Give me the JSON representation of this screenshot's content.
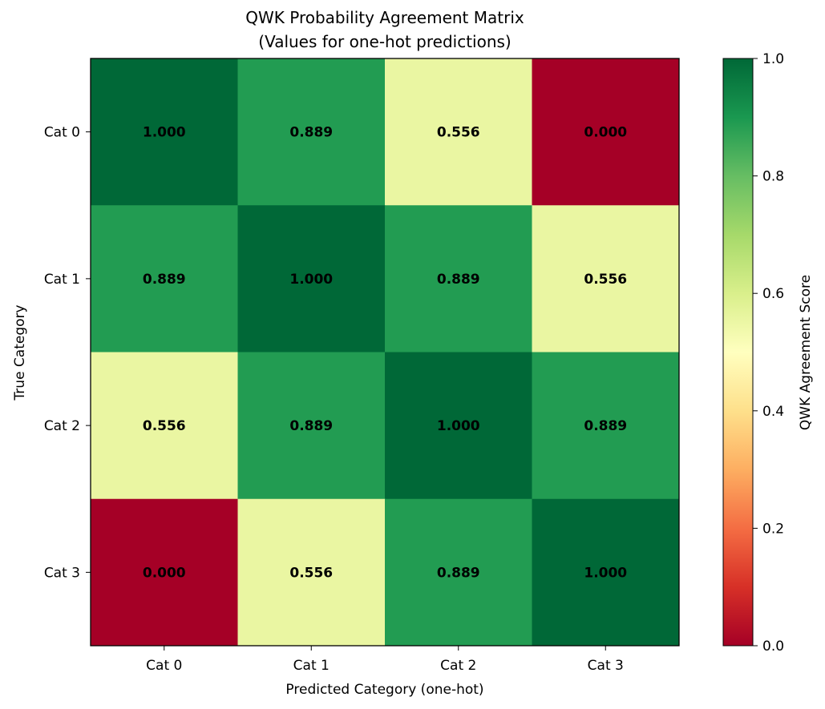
{
  "chart_data": {
    "type": "heatmap",
    "title": "QWK Probability Agreement Matrix",
    "subtitle": "(Values for one-hot predictions)",
    "xlabel": "Predicted Category (one-hot)",
    "ylabel": "True Category",
    "x_categories": [
      "Cat 0",
      "Cat 1",
      "Cat 2",
      "Cat 3"
    ],
    "y_categories": [
      "Cat 0",
      "Cat 1",
      "Cat 2",
      "Cat 3"
    ],
    "values": [
      [
        1.0,
        0.889,
        0.556,
        0.0
      ],
      [
        0.889,
        1.0,
        0.889,
        0.556
      ],
      [
        0.556,
        0.889,
        1.0,
        0.889
      ],
      [
        0.0,
        0.556,
        0.889,
        1.0
      ]
    ],
    "cell_labels": [
      [
        "1.000",
        "0.889",
        "0.556",
        "0.000"
      ],
      [
        "0.889",
        "1.000",
        "0.889",
        "0.556"
      ],
      [
        "0.556",
        "0.889",
        "1.000",
        "0.889"
      ],
      [
        "0.000",
        "0.556",
        "0.889",
        "1.000"
      ]
    ],
    "colorbar": {
      "label": "QWK Agreement Score",
      "range": [
        0,
        1
      ],
      "ticks": [
        "0.0",
        "0.2",
        "0.4",
        "0.6",
        "0.8",
        "1.0"
      ],
      "colormap": "RdYlGn"
    }
  }
}
